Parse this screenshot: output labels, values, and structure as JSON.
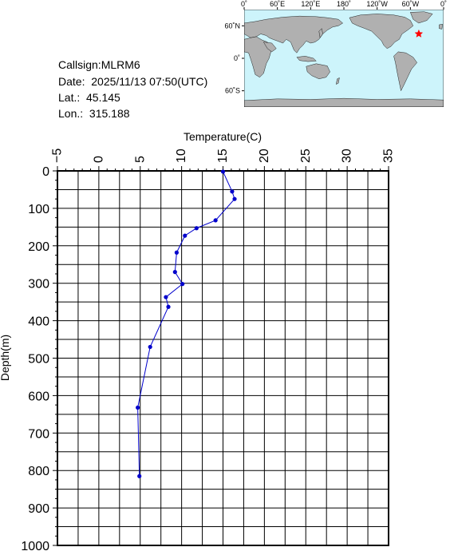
{
  "info": {
    "callsign": "Callsign:MLRM6",
    "date": "Date:  2025/11/13 07:50(UTC)",
    "lat": "Lat.:  45.145",
    "lon": "Lon.:  315.188"
  },
  "map": {
    "lon_ticks": [
      "0˚",
      "60˚E",
      "120˚E",
      "180˚",
      "120˚W",
      "60˚W",
      "0˚"
    ],
    "lat_ticks": [
      "60˚N",
      "0˚",
      "60˚S"
    ],
    "ocean_color": "#cdf4fb",
    "land_color": "#b0b0b0",
    "marker": {
      "lat": 45.145,
      "lon": 315.188,
      "color": "#ff0000"
    }
  },
  "chart_data": {
    "type": "line",
    "xlabel": "Temperature(C)",
    "ylabel": "Depth(m)",
    "xlim": [
      -5,
      35
    ],
    "ylim": [
      1000,
      0
    ],
    "xticks": [
      -5,
      0,
      5,
      10,
      15,
      20,
      25,
      30,
      35
    ],
    "yticks": [
      0,
      100,
      200,
      300,
      400,
      500,
      600,
      700,
      800,
      900,
      1000
    ],
    "x_axis_position": "top",
    "grid": true,
    "line_color": "#0000cc",
    "series": [
      {
        "points": [
          {
            "t": 15.0,
            "d": 2
          },
          {
            "t": 16.1,
            "d": 55
          },
          {
            "t": 16.4,
            "d": 75
          },
          {
            "t": 14.1,
            "d": 132
          },
          {
            "t": 11.8,
            "d": 153
          },
          {
            "t": 10.4,
            "d": 173
          },
          {
            "t": 9.4,
            "d": 218
          },
          {
            "t": 9.2,
            "d": 270
          },
          {
            "t": 10.1,
            "d": 302
          },
          {
            "t": 8.1,
            "d": 337
          },
          {
            "t": 8.4,
            "d": 363
          },
          {
            "t": 6.2,
            "d": 470
          },
          {
            "t": 4.7,
            "d": 632
          },
          {
            "t": 4.9,
            "d": 815
          }
        ]
      }
    ]
  }
}
